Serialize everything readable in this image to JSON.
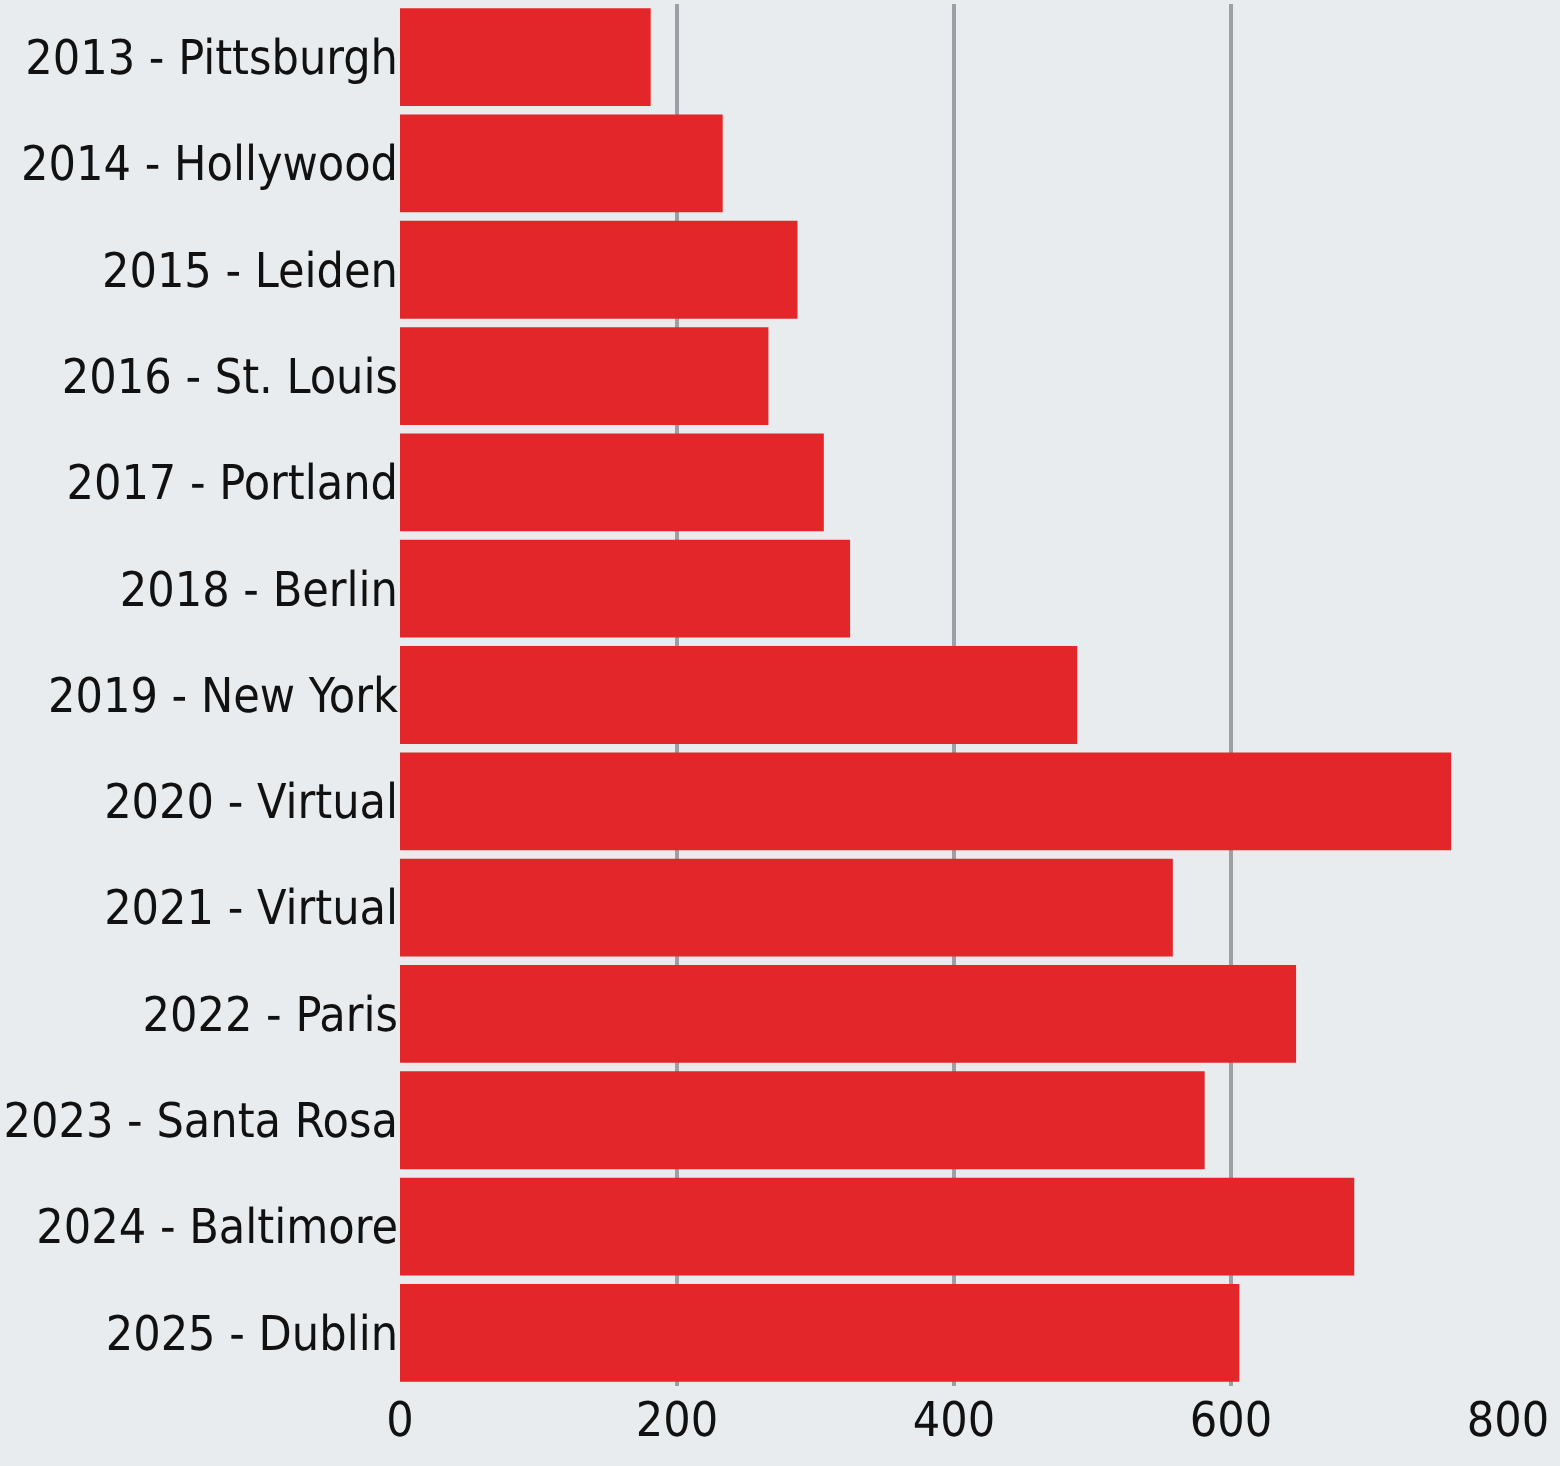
{
  "chart_data": {
    "type": "bar",
    "orientation": "horizontal",
    "categories": [
      "2013 - Pittsburgh",
      "2014 - Hollywood",
      "2015 - Leiden",
      "2016 - St. Louis",
      "2017 - Portland",
      "2018 - Berlin",
      "2019 - New York",
      "2020 - Virtual",
      "2021 - Virtual",
      "2022 - Paris",
      "2023 - Santa Rosa",
      "2024 - Baltimore",
      "2025 - Dublin"
    ],
    "values": [
      181,
      233,
      287,
      266,
      306,
      325,
      489,
      759,
      558,
      647,
      581,
      689,
      606
    ],
    "color": "#e3262a",
    "xlim": [
      0,
      800
    ],
    "xticks": [
      0,
      200,
      400,
      600,
      800
    ],
    "grid": "x"
  }
}
